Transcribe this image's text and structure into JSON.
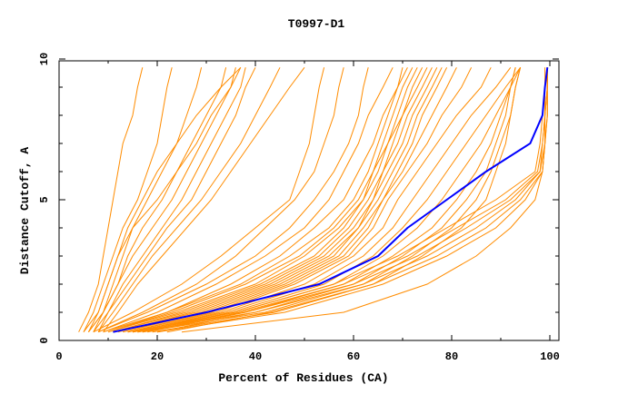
{
  "chart_data": {
    "type": "line",
    "title": "T0997-D1",
    "xlabel": "Percent of Residues (CA)",
    "ylabel": "Distance Cutoff, A",
    "xlim": [
      0,
      102
    ],
    "ylim": [
      0,
      10
    ],
    "x_ticks": [
      "0",
      "20",
      "40",
      "60",
      "80",
      "100"
    ],
    "y_ticks": [
      "0",
      "5",
      "10"
    ],
    "grid": false,
    "colors": {
      "models": "#ff8c00",
      "highlight": "#0000ff"
    },
    "y_levels": [
      0.3,
      1,
      2,
      3,
      4,
      5,
      6,
      7,
      8,
      9,
      9.7
    ],
    "series": [
      {
        "x": [
          4,
          6,
          8,
          9,
          10,
          11,
          12,
          13,
          15,
          16,
          17
        ]
      },
      {
        "x": [
          5,
          7,
          9,
          11,
          13,
          16,
          18,
          20,
          21,
          22,
          23
        ]
      },
      {
        "x": [
          6,
          8,
          10,
          12,
          15,
          18,
          21,
          24,
          26,
          28,
          29
        ]
      },
      {
        "x": [
          6,
          9,
          12,
          14,
          17,
          21,
          24,
          27,
          30,
          33,
          34
        ]
      },
      {
        "x": [
          7,
          9,
          12,
          15,
          19,
          23,
          26,
          29,
          32,
          35,
          36
        ]
      },
      {
        "x": [
          7,
          10,
          13,
          17,
          21,
          25,
          28,
          31,
          34,
          37,
          38
        ]
      },
      {
        "x": [
          8,
          10,
          14,
          18,
          22,
          27,
          30,
          33,
          36,
          38,
          40
        ]
      },
      {
        "x": [
          8,
          11,
          15,
          19,
          24,
          29,
          33,
          37,
          40,
          43,
          45
        ]
      },
      {
        "x": [
          9,
          12,
          16,
          21,
          26,
          31,
          35,
          39,
          43,
          47,
          50
        ]
      },
      {
        "x": [
          6,
          9,
          11,
          13,
          15,
          20,
          24,
          28,
          31,
          35,
          37
        ]
      },
      {
        "x": [
          5,
          8,
          10,
          12,
          14,
          17,
          20,
          24,
          28,
          33,
          37
        ]
      },
      {
        "x": [
          7,
          15,
          25,
          33,
          40,
          47,
          49,
          51,
          52,
          53,
          54
        ]
      },
      {
        "x": [
          8,
          17,
          28,
          36,
          42,
          48,
          52,
          54,
          56,
          57,
          58
        ]
      },
      {
        "x": [
          8,
          18,
          30,
          40,
          47,
          52,
          56,
          59,
          61,
          62,
          63
        ]
      },
      {
        "x": [
          9,
          20,
          32,
          42,
          50,
          55,
          58,
          61,
          63,
          66,
          68
        ]
      },
      {
        "x": [
          9,
          22,
          35,
          45,
          52,
          58,
          61,
          64,
          66,
          69,
          70
        ]
      },
      {
        "x": [
          10,
          22,
          37,
          47,
          55,
          60,
          63,
          65,
          67,
          69,
          71
        ]
      },
      {
        "x": [
          10,
          23,
          38,
          49,
          56,
          61,
          64,
          66,
          68,
          70,
          72
        ]
      },
      {
        "x": [
          10,
          24,
          40,
          50,
          57,
          62,
          64,
          67,
          69,
          71,
          73
        ]
      },
      {
        "x": [
          11,
          25,
          41,
          52,
          58,
          62,
          65,
          67,
          70,
          72,
          74
        ]
      },
      {
        "x": [
          11,
          26,
          42,
          53,
          59,
          63,
          66,
          68,
          70,
          73,
          75
        ]
      },
      {
        "x": [
          12,
          27,
          43,
          54,
          60,
          64,
          66,
          69,
          71,
          74,
          76
        ]
      },
      {
        "x": [
          12,
          28,
          44,
          55,
          61,
          64,
          67,
          70,
          72,
          75,
          77
        ]
      },
      {
        "x": [
          13,
          29,
          45,
          56,
          61,
          65,
          68,
          71,
          73,
          76,
          78
        ]
      },
      {
        "x": [
          13,
          30,
          46,
          57,
          62,
          66,
          69,
          72,
          74,
          77,
          79
        ]
      },
      {
        "x": [
          14,
          31,
          47,
          58,
          63,
          66,
          70,
          73,
          76,
          79,
          81
        ]
      },
      {
        "x": [
          14,
          32,
          48,
          59,
          64,
          67,
          71,
          75,
          78,
          82,
          84
        ]
      },
      {
        "x": [
          15,
          33,
          50,
          60,
          66,
          69,
          73,
          77,
          81,
          86,
          88
        ]
      },
      {
        "x": [
          15,
          34,
          52,
          62,
          68,
          72,
          76,
          80,
          84,
          89,
          92
        ]
      },
      {
        "x": [
          16,
          35,
          54,
          64,
          70,
          75,
          79,
          83,
          87,
          91,
          94
        ]
      },
      {
        "x": [
          16,
          36,
          56,
          66,
          73,
          78,
          82,
          86,
          89,
          92,
          94
        ]
      },
      {
        "x": [
          17,
          37,
          58,
          68,
          76,
          81,
          85,
          88,
          90,
          92,
          93
        ]
      },
      {
        "x": [
          18,
          38,
          60,
          70,
          78,
          83,
          87,
          89,
          91,
          92,
          93
        ]
      },
      {
        "x": [
          20,
          40,
          62,
          72,
          80,
          85,
          88,
          90,
          92,
          93,
          94
        ]
      },
      {
        "x": [
          22,
          43,
          64,
          74,
          82,
          87,
          89,
          91,
          92,
          93,
          94
        ]
      },
      {
        "x": [
          14,
          36,
          56,
          69,
          79,
          89,
          97,
          98,
          98.5,
          99,
          99
        ]
      },
      {
        "x": [
          15,
          38,
          58,
          71,
          81,
          91,
          97.5,
          98.5,
          99,
          99,
          99.5
        ]
      },
      {
        "x": [
          16,
          40,
          60,
          73,
          83,
          92,
          98,
          98.5,
          99,
          99.5,
          99.5
        ]
      },
      {
        "x": [
          17,
          42,
          62,
          75,
          85,
          93,
          98,
          99,
          99,
          99.5,
          99.5
        ]
      },
      {
        "x": [
          19,
          44,
          64,
          77,
          87,
          94,
          98.5,
          99,
          99,
          99.5,
          99.5
        ]
      },
      {
        "x": [
          20,
          46,
          66,
          79,
          89,
          95,
          98.5,
          99,
          99.5,
          99.5,
          99.5
        ]
      },
      {
        "x": [
          25,
          58,
          75,
          85,
          92,
          97,
          98.5,
          99,
          99.5,
          99.5,
          99.5
        ]
      }
    ],
    "highlight_series": {
      "x": [
        11,
        30,
        53,
        65,
        71,
        79,
        87,
        96,
        98.5,
        99,
        99.5
      ]
    }
  }
}
